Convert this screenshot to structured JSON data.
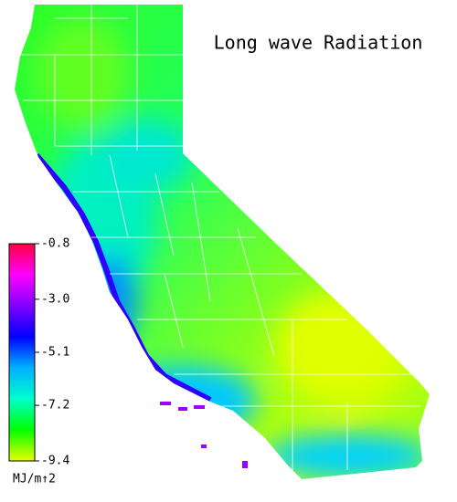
{
  "chart_data": {
    "type": "colorbar",
    "title": "Long wave Radiation",
    "unit_label": "MJ/m↑2",
    "ylim": [
      -9.4,
      -0.8
    ],
    "yticks": [
      -0.8,
      {
        "value": -3,
        "label": "-3.0"
      },
      -5.1,
      -7.2,
      -9.4
    ],
    "colors": [
      "#e8ff00",
      "#00ff00",
      "#00ffcc",
      "#00b0ff",
      "#0000ff",
      "#8000ff",
      "#ff00ff",
      "#ff0040"
    ]
  }
}
